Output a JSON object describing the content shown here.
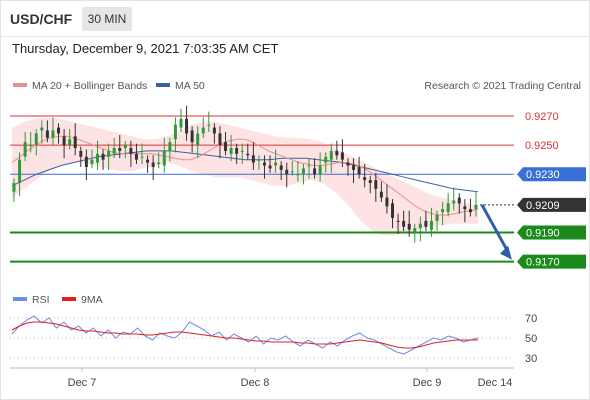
{
  "header": {
    "symbol": "USD/CHF",
    "timeframe": "30 MIN",
    "datetime": "Thursday, December 9, 2021 7:03:35 AM CET"
  },
  "legend": {
    "ma20_label": "MA 20 + Bollinger Bands",
    "ma50_label": "MA 50",
    "copyright": "Research © 2021 Trading Central",
    "rsi_label": "RSI",
    "rsi_ma_label": "9MA"
  },
  "colors": {
    "resistance": "#e03030",
    "pivot": "#3a6fd8",
    "support": "#1a8a1a",
    "current": "#333333",
    "ma20": "#e89090",
    "bollinger_fill": "#fde3e3",
    "ma50": "#3d5f9c",
    "rsi": "#6a8ee8",
    "rsi_ma": "#e02020",
    "candle_up": "#2f9a3a",
    "candle_down": "#333333",
    "arrow": "#2e5ea8"
  },
  "chart_data": [
    {
      "type": "candlestick",
      "xlabel": "",
      "ylabel": "",
      "x_ticks": [
        "Dec 7",
        "Dec 8",
        "Dec 9",
        "Dec 14"
      ],
      "ylim": [
        0.9154,
        0.9283
      ],
      "levels": [
        {
          "kind": "resistance",
          "value": 0.927,
          "label": "0.9270"
        },
        {
          "kind": "resistance",
          "value": 0.925,
          "label": "0.9250"
        },
        {
          "kind": "pivot",
          "value": 0.923,
          "label": "0.9230"
        },
        {
          "kind": "current",
          "value": 0.9209,
          "label": "0.9209"
        },
        {
          "kind": "support",
          "value": 0.919,
          "label": "0.9190"
        },
        {
          "kind": "support",
          "value": 0.917,
          "label": "0.9170"
        }
      ],
      "close_series": [
        0.9224,
        0.924,
        0.9252,
        0.925,
        0.9258,
        0.9262,
        0.9255,
        0.926,
        0.9258,
        0.925,
        0.9254,
        0.9248,
        0.9242,
        0.9235,
        0.924,
        0.9244,
        0.924,
        0.9246,
        0.9248,
        0.9246,
        0.925,
        0.9244,
        0.924,
        0.9242,
        0.9238,
        0.9235,
        0.9238,
        0.9246,
        0.9252,
        0.9264,
        0.9268,
        0.9258,
        0.9252,
        0.9258,
        0.9262,
        0.9264,
        0.9258,
        0.925,
        0.9246,
        0.9248,
        0.9244,
        0.9246,
        0.9243,
        0.9238,
        0.924,
        0.9236,
        0.9234,
        0.9238,
        0.9233,
        0.923,
        0.9232,
        0.923,
        0.9234,
        0.9236,
        0.923,
        0.9236,
        0.9242,
        0.9246,
        0.9243,
        0.924,
        0.9236,
        0.9233,
        0.923,
        0.9226,
        0.9224,
        0.922,
        0.9214,
        0.9208,
        0.92,
        0.9198,
        0.9194,
        0.9192,
        0.9193,
        0.9196,
        0.9194,
        0.9198,
        0.9202,
        0.9206,
        0.921,
        0.9212,
        0.921,
        0.9206,
        0.9204,
        0.9209
      ],
      "ma20_series": [
        0.9238,
        0.9242,
        0.9246,
        0.925,
        0.9253,
        0.9255,
        0.9256,
        0.9256,
        0.9255,
        0.9253,
        0.9251,
        0.9249,
        0.9247,
        0.9245,
        0.9244,
        0.9244,
        0.9244,
        0.9244,
        0.9244,
        0.9243,
        0.9242,
        0.9241,
        0.924,
        0.924,
        0.9242,
        0.9245,
        0.9248,
        0.9251,
        0.9253,
        0.9254,
        0.9254,
        0.9252,
        0.9249,
        0.9246,
        0.9244,
        0.9242,
        0.924,
        0.9238,
        0.9237,
        0.9236,
        0.9236,
        0.9237,
        0.9238,
        0.9238,
        0.9237,
        0.9235,
        0.9232,
        0.9228,
        0.9224,
        0.922,
        0.9216,
        0.9212,
        0.9208,
        0.9205,
        0.9203,
        0.9202,
        0.9202,
        0.9203,
        0.9204,
        0.9205,
        0.9206
      ],
      "ma50_series": [
        0.9222,
        0.9226,
        0.923,
        0.9233,
        0.9236,
        0.9238,
        0.924,
        0.9242,
        0.9243,
        0.9244,
        0.9245,
        0.9246,
        0.9246,
        0.9246,
        0.9245,
        0.9244,
        0.9243,
        0.9242,
        0.9241,
        0.924,
        0.924,
        0.924,
        0.9241,
        0.9241,
        0.9241,
        0.924,
        0.9239,
        0.9238,
        0.9236,
        0.9234,
        0.9232,
        0.923,
        0.9228,
        0.9226,
        0.9224,
        0.9222,
        0.922,
        0.9219,
        0.9218
      ],
      "bollinger_upper": [
        0.9262,
        0.9266,
        0.9268,
        0.9269,
        0.9268,
        0.9266,
        0.9264,
        0.9262,
        0.926,
        0.9258,
        0.9256,
        0.9254,
        0.9254,
        0.9256,
        0.926,
        0.9264,
        0.9266,
        0.9266,
        0.9264,
        0.9262,
        0.926,
        0.9258,
        0.9256,
        0.9255,
        0.9255,
        0.9254,
        0.9252,
        0.9248,
        0.9244,
        0.924,
        0.9236,
        0.9232,
        0.9228,
        0.9224,
        0.922,
        0.9216,
        0.9214,
        0.9212,
        0.921,
        0.9209
      ],
      "bollinger_lower": [
        0.9214,
        0.922,
        0.9226,
        0.9232,
        0.9236,
        0.9238,
        0.9238,
        0.9236,
        0.9234,
        0.9232,
        0.9232,
        0.9234,
        0.9236,
        0.9238,
        0.9236,
        0.9232,
        0.923,
        0.9228,
        0.9228,
        0.9228,
        0.9226,
        0.9224,
        0.9222,
        0.9222,
        0.9224,
        0.9226,
        0.9224,
        0.9218,
        0.921,
        0.92,
        0.9192,
        0.9188,
        0.9188,
        0.919,
        0.9192,
        0.9194,
        0.9195,
        0.9196,
        0.9196,
        0.9196
      ],
      "forecast_arrow": {
        "from": 0.9209,
        "to": 0.917
      }
    },
    {
      "type": "line",
      "ylim": [
        22,
        78
      ],
      "y_ticks": [
        70,
        50,
        30
      ],
      "series": [
        {
          "name": "RSI",
          "values": [
            54,
            62,
            68,
            72,
            65,
            70,
            60,
            66,
            58,
            62,
            55,
            60,
            52,
            58,
            50,
            56,
            54,
            60,
            52,
            48,
            55,
            52,
            50,
            56,
            66,
            62,
            58,
            52,
            56,
            48,
            54,
            50,
            46,
            52,
            44,
            50,
            48,
            52,
            46,
            42,
            48,
            44,
            40,
            46,
            42,
            48,
            52,
            55,
            50,
            48,
            44,
            40,
            36,
            34,
            38,
            42,
            46,
            50,
            48,
            52,
            50,
            46,
            48,
            50
          ]
        },
        {
          "name": "9MA",
          "values": [
            58,
            62,
            65,
            66,
            66,
            65,
            64,
            62,
            60,
            58,
            57,
            57,
            56,
            55,
            55,
            54,
            54,
            54,
            53,
            53,
            54,
            55,
            56,
            56,
            55,
            54,
            53,
            52,
            51,
            50,
            50,
            49,
            48,
            47,
            47,
            46,
            46,
            46,
            46,
            45,
            45,
            44,
            44,
            44,
            45,
            46,
            47,
            48,
            47,
            46,
            45,
            43,
            41,
            40,
            40,
            41,
            43,
            45,
            46,
            47,
            48,
            48,
            48,
            48
          ]
        }
      ]
    }
  ]
}
